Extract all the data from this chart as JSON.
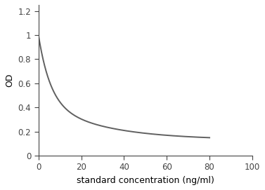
{
  "xlabel": "standard concentration (ng/ml)",
  "ylabel": "OD",
  "xlim": [
    0,
    100
  ],
  "ylim": [
    0,
    1.25
  ],
  "xticks": [
    0,
    20,
    40,
    60,
    80,
    100
  ],
  "yticks": [
    0,
    0.2,
    0.4,
    0.6,
    0.8,
    1.0,
    1.2
  ],
  "line_color": "#606060",
  "line_width": 1.4,
  "background_color": "#ffffff",
  "axes_background": "#ffffff",
  "curve_x_start": 0.0,
  "curve_x_end": 80,
  "curve_a": 0.86,
  "curve_b": 0.135,
  "curve_k": 0.18,
  "xlabel_fontsize": 9,
  "ylabel_fontsize": 9,
  "tick_fontsize": 8.5
}
